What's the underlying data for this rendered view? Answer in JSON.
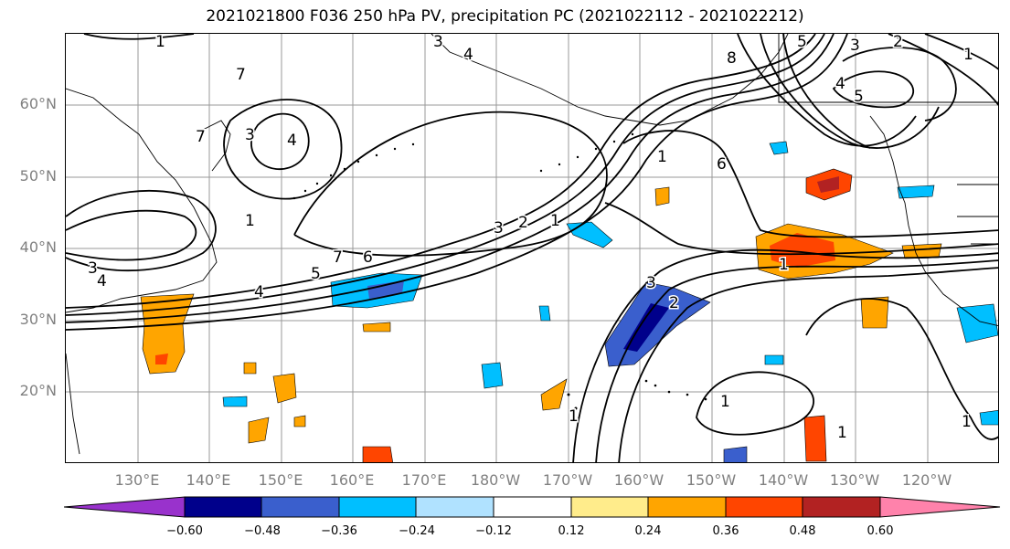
{
  "title": "2021021800 F036 250 hPa PV, precipitation PC (2021022112 - 2021022212)",
  "lat_labels": [
    "60°N",
    "50°N",
    "40°N",
    "30°N",
    "20°N"
  ],
  "lon_labels": [
    "130°E",
    "140°E",
    "150°E",
    "160°E",
    "170°E",
    "180°W",
    "170°W",
    "160°W",
    "150°W",
    "140°W",
    "130°W",
    "120°W"
  ],
  "colorbar": {
    "ticks": [
      "−0.60",
      "−0.48",
      "−0.36",
      "−0.24",
      "−0.12",
      "0.12",
      "0.24",
      "0.36",
      "0.48",
      "0.60"
    ],
    "colors": [
      "#9932cc",
      "#00008b",
      "#3a5fcd",
      "#00bfff",
      "#b0e2ff",
      "#ffffff",
      "#ffec8b",
      "#ffa500",
      "#ff4500",
      "#b22222",
      "#ff82ab"
    ]
  },
  "contour_labels": [
    "1",
    "3",
    "4",
    "7",
    "8",
    "5",
    "3",
    "2",
    "1",
    "4",
    "5",
    "7",
    "1",
    "4",
    "3",
    "6",
    "1",
    "3",
    "2",
    "1",
    "3",
    "4",
    "4",
    "5",
    "7",
    "6",
    "1",
    "3",
    "2",
    "1",
    "1",
    "1",
    "1"
  ]
}
